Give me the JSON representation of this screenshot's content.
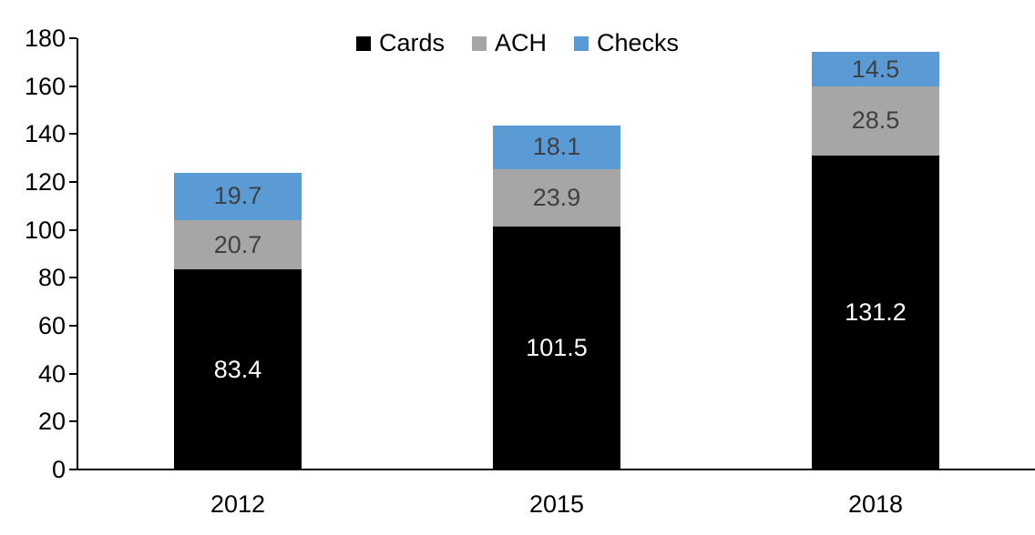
{
  "chart_data": {
    "type": "bar",
    "stacked": true,
    "title": "",
    "categories": [
      "2012",
      "2015",
      "2018"
    ],
    "series": [
      {
        "name": "Cards",
        "color": "#000000",
        "label_color": "#ffffff",
        "values": [
          83.4,
          101.5,
          131.2
        ]
      },
      {
        "name": "ACH",
        "color": "#a6a6a6",
        "label_color": "#404040",
        "values": [
          20.7,
          23.9,
          28.5
        ]
      },
      {
        "name": "Checks",
        "color": "#5b9bd5",
        "label_color": "#404040",
        "values": [
          19.7,
          18.1,
          14.5
        ]
      }
    ],
    "ylim": [
      0,
      180
    ],
    "yticks": [
      0,
      20,
      40,
      60,
      80,
      100,
      120,
      140,
      160,
      180
    ],
    "grid": false,
    "legend_position": "top-center",
    "data_labels": true,
    "data_label_decimals": 1
  }
}
